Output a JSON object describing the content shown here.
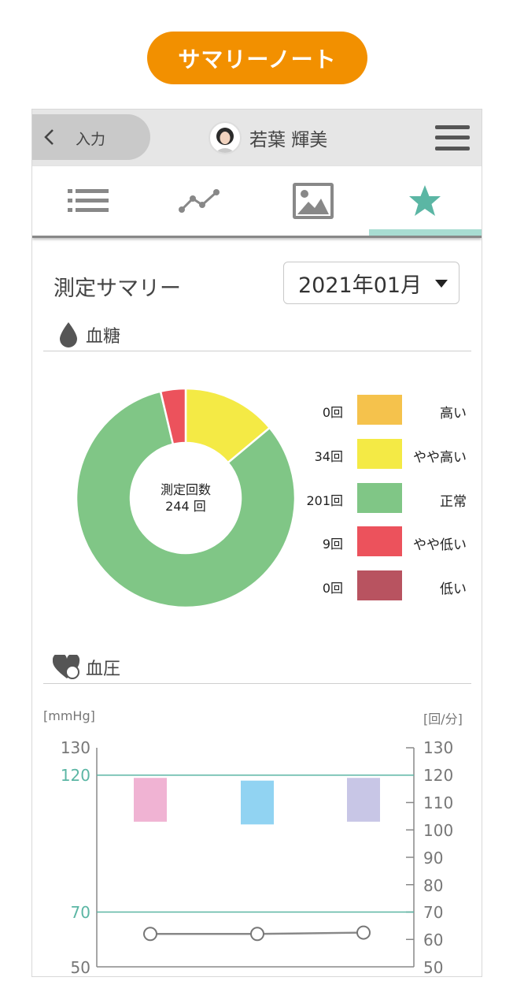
{
  "header": {
    "title": "サマリーノート"
  },
  "topbar": {
    "back_label": "入力",
    "user_name": "若葉 輝美"
  },
  "tabs": [
    {
      "name": "list",
      "icon": "list-icon",
      "active": false
    },
    {
      "name": "trend",
      "icon": "line-chart-icon",
      "active": false
    },
    {
      "name": "image",
      "icon": "image-icon",
      "active": false
    },
    {
      "name": "summary",
      "icon": "star-icon",
      "active": true
    }
  ],
  "summary": {
    "title": "測定サマリー",
    "month": "2021年01月"
  },
  "glucose": {
    "section_label": "血糖",
    "center_label": "測定回数",
    "center_value": "244 回",
    "legend": [
      {
        "count": "0回",
        "label": "高い",
        "color": "#f5c24c"
      },
      {
        "count": "34回",
        "label": "やや高い",
        "color": "#f4ea45"
      },
      {
        "count": "201回",
        "label": "正常",
        "color": "#80c686"
      },
      {
        "count": "9回",
        "label": "やや低い",
        "color": "#ec525c"
      },
      {
        "count": "0回",
        "label": "低い",
        "color": "#b85360"
      }
    ]
  },
  "pressure": {
    "section_label": "血圧",
    "left_unit": "[mmHg]",
    "right_unit": "[回/分]",
    "left_ticks": [
      "130",
      "120",
      "70",
      "50"
    ],
    "right_ticks": [
      "130",
      "120",
      "110",
      "100",
      "90",
      "80",
      "70",
      "60",
      "50"
    ],
    "reference_lines": [
      120,
      70
    ],
    "accent_color": "#5bb6a4"
  },
  "chart_data": [
    {
      "type": "pie",
      "title": "",
      "categories": [
        "高い",
        "やや高い",
        "正常",
        "やや低い",
        "低い"
      ],
      "values": [
        0,
        34,
        201,
        9,
        0
      ],
      "colors": [
        "#f5c24c",
        "#f4ea45",
        "#80c686",
        "#ec525c",
        "#b85360"
      ],
      "donut": true
    },
    {
      "type": "bar",
      "title": "",
      "left_axis": {
        "label": "[mmHg]",
        "ylim": [
          50,
          130
        ]
      },
      "right_axis": {
        "label": "[回/分]",
        "ylim": [
          50,
          130
        ]
      },
      "series": [
        {
          "kind": "range-bar",
          "values": [
            [
              103,
              119
            ],
            [
              102,
              118
            ],
            [
              103,
              119
            ]
          ],
          "colors": [
            "#f0b3d3",
            "#91d3f2",
            "#c8c6e6"
          ]
        },
        {
          "kind": "line",
          "values": [
            62,
            62,
            62.5
          ],
          "color": "#888888"
        }
      ]
    }
  ]
}
